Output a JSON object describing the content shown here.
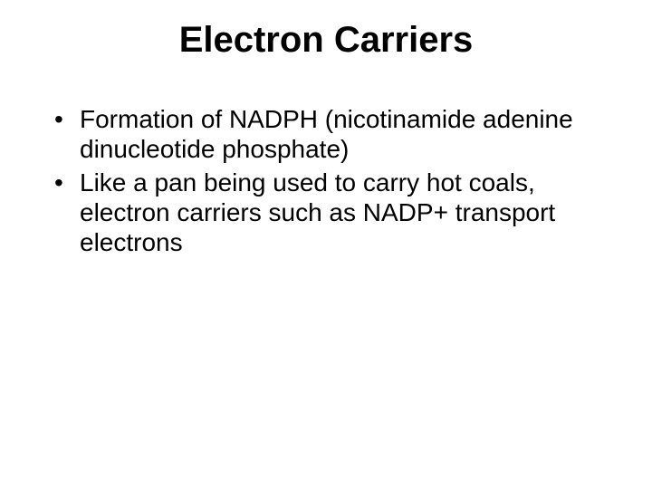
{
  "slide": {
    "title": "Electron Carriers",
    "title_fontsize": 40,
    "title_weight": "bold",
    "title_color": "#000000",
    "bullets": [
      "Formation of NADPH (nicotinamide adenine dinucleotide phosphate)",
      "Like a pan being used to carry hot coals, electron carriers such as NADP+ transport electrons"
    ],
    "bullet_fontsize": 28,
    "bullet_lineheight": 1.18,
    "bullet_color": "#000000",
    "background_color": "#ffffff"
  }
}
